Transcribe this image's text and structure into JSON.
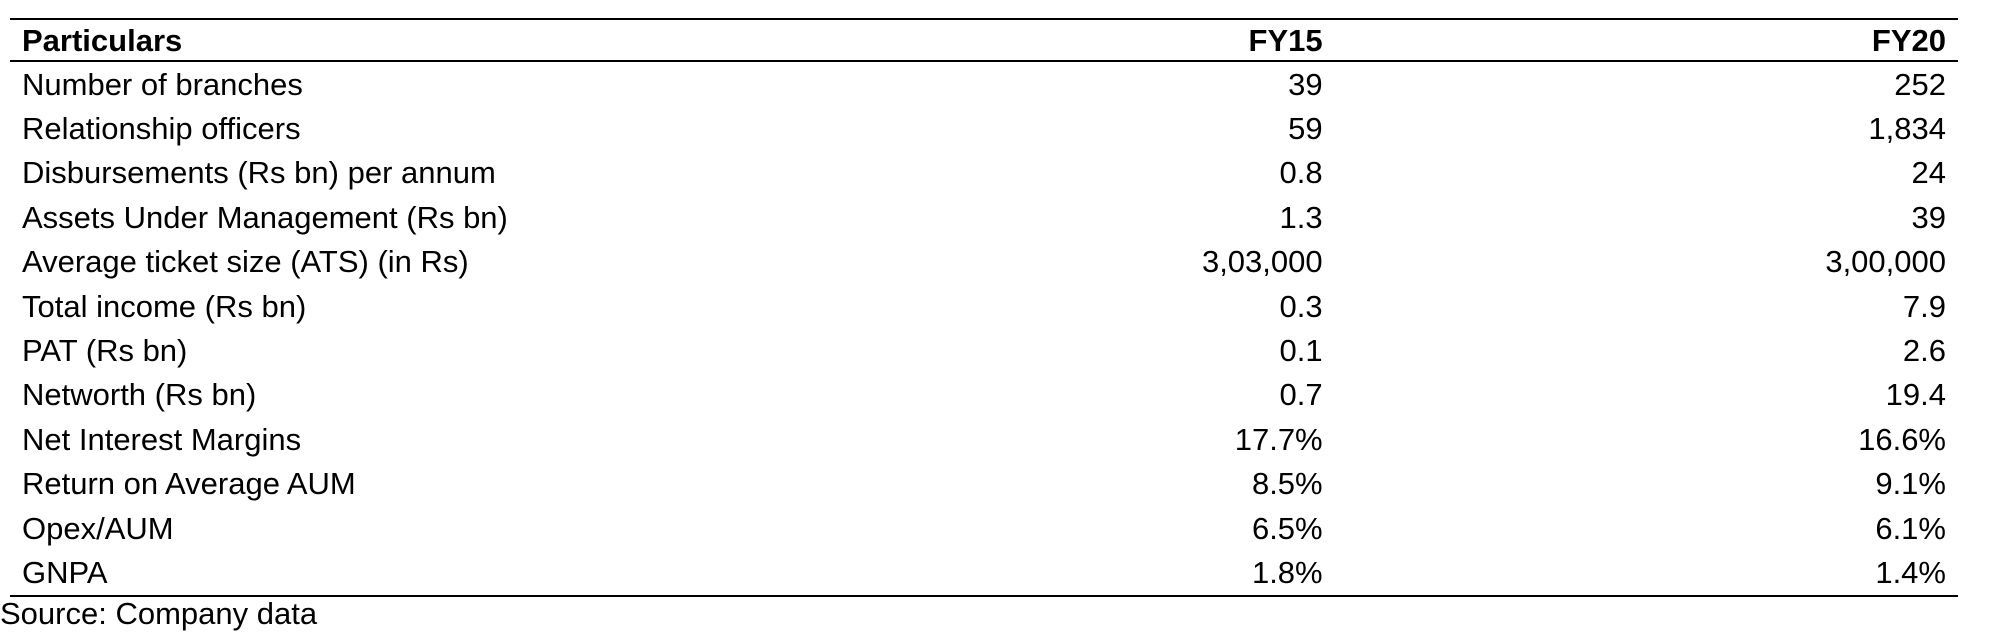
{
  "table": {
    "columns": [
      "Particulars",
      "FY15",
      "FY20"
    ],
    "rows": [
      [
        "Number of branches",
        "39",
        "252"
      ],
      [
        "Relationship officers",
        "59",
        "1,834"
      ],
      [
        "Disbursements (Rs bn) per annum",
        "0.8",
        "24"
      ],
      [
        "Assets Under Management (Rs bn)",
        "1.3",
        "39"
      ],
      [
        "Average ticket size (ATS) (in Rs)",
        "3,03,000",
        "3,00,000"
      ],
      [
        "Total income (Rs bn)",
        "0.3",
        "7.9"
      ],
      [
        "PAT (Rs bn)",
        "0.1",
        "2.6"
      ],
      [
        "Networth (Rs bn)",
        "0.7",
        "19.4"
      ],
      [
        "Net Interest Margins",
        "17.7%",
        "16.6%"
      ],
      [
        "Return on Average AUM",
        "8.5%",
        "9.1%"
      ],
      [
        "Opex/AUM",
        "6.5%",
        "6.1%"
      ],
      [
        "GNPA",
        "1.8%",
        "1.4%"
      ]
    ]
  },
  "source": "Source: Company data"
}
